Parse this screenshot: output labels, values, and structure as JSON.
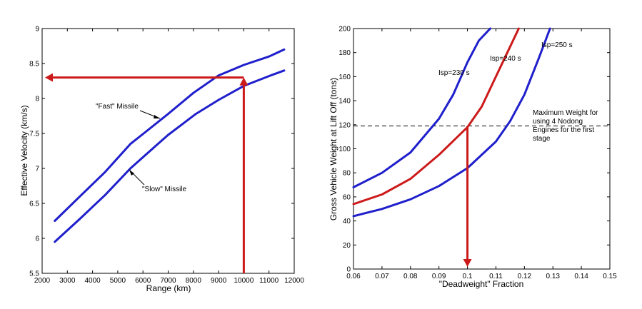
{
  "chart_data": [
    {
      "type": "line",
      "title": "",
      "xlabel": "Range (km)",
      "ylabel": "Effective Velocity (km/s)",
      "xlim": [
        2000,
        12000
      ],
      "ylim": [
        5.5,
        9
      ],
      "xticks": [
        "2000",
        "3000",
        "4000",
        "5000",
        "6000",
        "7000",
        "8000",
        "9000",
        "10000",
        "11000",
        "12000"
      ],
      "yticks": [
        "5.5",
        "6",
        "6.5",
        "7",
        "7.5",
        "8",
        "8.5",
        "9"
      ],
      "grid": false,
      "series": [
        {
          "name": "\"Fast\" Missile",
          "color": "#1f1fcc",
          "x": [
            2500,
            3500,
            4500,
            5500,
            6100,
            7000,
            8000,
            9000,
            10000,
            11000,
            11600
          ],
          "y": [
            6.25,
            6.6,
            6.95,
            7.35,
            7.52,
            7.78,
            8.08,
            8.33,
            8.48,
            8.6,
            8.7
          ]
        },
        {
          "name": "\"Slow\" Missile",
          "color": "#1f1fcc",
          "x": [
            2500,
            3500,
            4500,
            5500,
            6500,
            7000,
            8100,
            9000,
            10000,
            11000,
            11600
          ],
          "y": [
            5.95,
            6.28,
            6.62,
            7.0,
            7.32,
            7.48,
            7.78,
            7.98,
            8.18,
            8.32,
            8.4
          ]
        }
      ],
      "annotations": [
        {
          "text": "\"Fast\" Missile",
          "x": 5600,
          "y": 7.7,
          "arrow_to": [
            6400,
            7.6
          ]
        },
        {
          "text": "\"Slow\" Missile",
          "x": 6000,
          "y": 6.8,
          "arrow_to": [
            5400,
            6.95
          ]
        }
      ],
      "guide_arrows": {
        "color": "#cc1a1a",
        "vertical": {
          "x": 10000,
          "from_y": 5.5,
          "to_y": 8.3
        },
        "horizontal": {
          "y": 8.3,
          "from_x": 10000,
          "to_x": 2000
        }
      }
    },
    {
      "type": "line",
      "title": "",
      "xlabel": "\"Deadweight\" Fraction",
      "ylabel": "Gross Vehicle Weight at Lift Off (tons)",
      "xlim": [
        0.06,
        0.15
      ],
      "ylim": [
        0,
        200
      ],
      "xticks": [
        "0.06",
        "0.07",
        "0.08",
        "0.09",
        "0.1",
        "0.11",
        "0.12",
        "0.13",
        "0.14",
        "0.15"
      ],
      "yticks": [
        "0",
        "20",
        "40",
        "60",
        "80",
        "100",
        "120",
        "140",
        "160",
        "180",
        "200"
      ],
      "grid": false,
      "series": [
        {
          "name": "Isp=230 s",
          "color": "#1f1fcc",
          "x": [
            0.06,
            0.07,
            0.08,
            0.09,
            0.095,
            0.1,
            0.104,
            0.108
          ],
          "y": [
            68,
            80,
            97,
            125,
            145,
            172,
            190,
            200
          ]
        },
        {
          "name": "Isp=240 s",
          "color": "#cc1a1a",
          "x": [
            0.06,
            0.07,
            0.08,
            0.09,
            0.1,
            0.105,
            0.11,
            0.114,
            0.118
          ],
          "y": [
            54,
            62,
            75,
            95,
            118,
            135,
            160,
            180,
            200
          ]
        },
        {
          "name": "Isp=250 s",
          "color": "#1f1fcc",
          "x": [
            0.06,
            0.07,
            0.08,
            0.09,
            0.1,
            0.11,
            0.115,
            0.12,
            0.125,
            0.129
          ],
          "y": [
            44,
            50,
            58,
            69,
            84,
            106,
            123,
            145,
            175,
            200
          ]
        }
      ],
      "reference_line": {
        "y": 119,
        "style": "dashed",
        "label": "Maximum Weight for using 4 Nodong Engines for the first stage"
      },
      "guide_arrows": {
        "color": "#cc1a1a",
        "vertical": {
          "x": 0.1,
          "from_y": 119,
          "to_y": 0
        }
      }
    }
  ],
  "page": {
    "label_fast": "\"Fast\" Missile",
    "label_slow": "\"Slow\" Missile",
    "ref_line1": "Maximum Weight for",
    "ref_line2": "using 4 Nodong",
    "ref_line3": "Engines for the first",
    "ref_line4": "stage"
  }
}
